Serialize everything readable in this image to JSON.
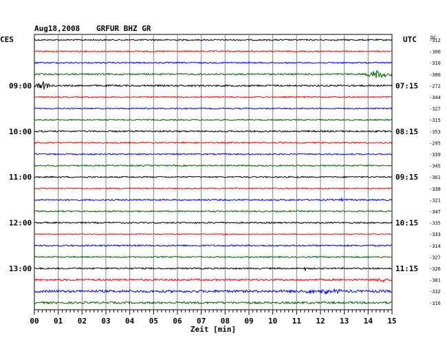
{
  "header": {
    "date": "Aug18,2008",
    "station": "GRFUR BHZ GR",
    "left_tz": "CES",
    "right_tz": "UTC",
    "dc_label": "DC"
  },
  "chart_data": {
    "type": "line",
    "title": "Aug18,2008   GRFUR BHZ GR",
    "xlabel": "Zeit [min]",
    "x_ticks": [
      "00",
      "01",
      "02",
      "03",
      "04",
      "05",
      "06",
      "07",
      "08",
      "09",
      "10",
      "11",
      "12",
      "13",
      "14",
      "15"
    ],
    "xlim": [
      0,
      15
    ],
    "left_time_labels": [
      "09:00",
      "10:00",
      "11:00",
      "12:00",
      "13:00"
    ],
    "right_time_labels": [
      "07:15",
      "08:15",
      "09:15",
      "10:15",
      "11:15"
    ],
    "trace_colors": [
      "#000000",
      "#ff0000",
      "#0000ff",
      "#006400"
    ],
    "dc_offsets": [
      -312,
      -300,
      -310,
      -300,
      -272,
      -344,
      -327,
      -315,
      -353,
      -295,
      -339,
      -345,
      -361,
      -338,
      -321,
      -347,
      -335,
      -333,
      -314,
      -327,
      -326,
      -301,
      -332,
      -316
    ],
    "traces": [
      {
        "row": 0,
        "noise": 1.0,
        "events": []
      },
      {
        "row": 1,
        "noise": 1.0,
        "events": []
      },
      {
        "row": 2,
        "noise": 1.0,
        "events": []
      },
      {
        "row": 3,
        "noise": 1.2,
        "events": [
          {
            "start": 13.8,
            "end": 15.0,
            "amp": 6
          }
        ]
      },
      {
        "row": 4,
        "noise": 1.2,
        "events": [
          {
            "start": 0.0,
            "end": 0.7,
            "amp": 6
          }
        ]
      },
      {
        "row": 5,
        "noise": 0.9,
        "events": []
      },
      {
        "row": 6,
        "noise": 0.9,
        "events": []
      },
      {
        "row": 7,
        "noise": 0.9,
        "events": []
      },
      {
        "row": 8,
        "noise": 1.2,
        "events": []
      },
      {
        "row": 9,
        "noise": 1.0,
        "events": [
          {
            "start": 6.1,
            "end": 6.4,
            "amp": 2
          }
        ]
      },
      {
        "row": 10,
        "noise": 1.0,
        "events": []
      },
      {
        "row": 11,
        "noise": 1.0,
        "events": []
      },
      {
        "row": 12,
        "noise": 1.0,
        "events": []
      },
      {
        "row": 13,
        "noise": 0.9,
        "events": []
      },
      {
        "row": 14,
        "noise": 1.1,
        "events": [
          {
            "start": 12.6,
            "end": 13.0,
            "amp": 2
          }
        ]
      },
      {
        "row": 15,
        "noise": 1.0,
        "events": []
      },
      {
        "row": 16,
        "noise": 1.0,
        "events": []
      },
      {
        "row": 17,
        "noise": 0.6,
        "events": [
          {
            "start": 7.9,
            "end": 8.05,
            "amp": 3
          }
        ]
      },
      {
        "row": 18,
        "noise": 1.1,
        "events": []
      },
      {
        "row": 19,
        "noise": 1.0,
        "events": []
      },
      {
        "row": 20,
        "noise": 1.1,
        "events": [
          {
            "start": 11.3,
            "end": 11.45,
            "amp": 3
          }
        ]
      },
      {
        "row": 21,
        "noise": 1.4,
        "events": [
          {
            "start": 14.3,
            "end": 15.0,
            "amp": 3
          }
        ]
      },
      {
        "row": 22,
        "noise": 1.8,
        "events": [
          {
            "start": 11.0,
            "end": 13.0,
            "amp": 4
          }
        ]
      },
      {
        "row": 23,
        "noise": 1.5,
        "events": []
      }
    ]
  }
}
